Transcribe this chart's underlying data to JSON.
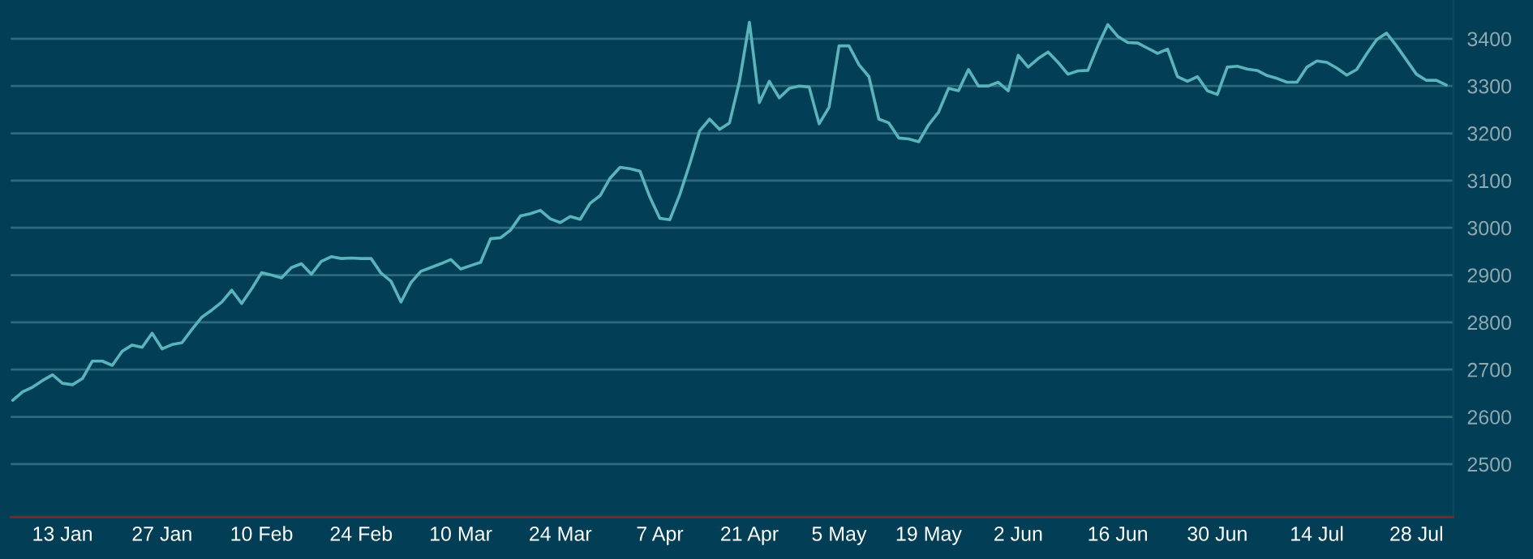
{
  "chart_data": {
    "type": "line",
    "categories": [
      null,
      null,
      null,
      null,
      null,
      "13 Jan",
      null,
      null,
      null,
      null,
      null,
      null,
      null,
      null,
      null,
      "27 Jan",
      null,
      null,
      null,
      null,
      null,
      null,
      null,
      null,
      null,
      "10 Feb",
      null,
      null,
      null,
      null,
      null,
      null,
      null,
      null,
      null,
      "24 Feb",
      null,
      null,
      null,
      null,
      null,
      null,
      null,
      null,
      null,
      "10 Mar",
      null,
      null,
      null,
      null,
      null,
      null,
      null,
      null,
      null,
      "24 Mar",
      null,
      null,
      null,
      null,
      null,
      null,
      null,
      null,
      null,
      "7 Apr",
      null,
      null,
      null,
      null,
      null,
      null,
      null,
      null,
      "21 Apr",
      null,
      null,
      null,
      null,
      null,
      null,
      null,
      null,
      "5 May",
      null,
      null,
      null,
      null,
      null,
      null,
      null,
      null,
      "19 May",
      null,
      null,
      null,
      null,
      null,
      null,
      null,
      null,
      "2 Jun",
      null,
      null,
      null,
      null,
      null,
      null,
      null,
      null,
      null,
      "16 Jun",
      null,
      null,
      null,
      null,
      null,
      null,
      null,
      null,
      null,
      "30 Jun",
      null,
      null,
      null,
      null,
      null,
      null,
      null,
      null,
      null,
      "14 Jul",
      null,
      null,
      null,
      null,
      null,
      null,
      null,
      null,
      null,
      "28 Jul",
      null,
      null,
      null
    ],
    "series": [
      {
        "color": "#5ab4bc",
        "values": [
          2635,
          2653,
          2663,
          2677,
          2689,
          2671,
          2668,
          2681,
          2718,
          2718,
          2709,
          2739,
          2752,
          2747,
          2777,
          2744,
          2753,
          2757,
          2785,
          2811,
          2826,
          2843,
          2868,
          2840,
          2871,
          2905,
          2900,
          2894,
          2916,
          2924,
          2902,
          2929,
          2939,
          2935,
          2936,
          2935,
          2935,
          2904,
          2887,
          2843,
          2884,
          2908,
          2916,
          2924,
          2933,
          2913,
          2920,
          2927,
          2977,
          2979,
          2995,
          3025,
          3030,
          3037,
          3019,
          3011,
          3024,
          3018,
          3052,
          3068,
          3105,
          3128,
          3125,
          3120,
          3065,
          3020,
          3017,
          3070,
          3135,
          3205,
          3230,
          3208,
          3222,
          3310,
          3435,
          3265,
          3310,
          3275,
          3295,
          3300,
          3298,
          3220,
          3255,
          3385,
          3385,
          3345,
          3320,
          3230,
          3222,
          3190,
          3188,
          3182,
          3218,
          3245,
          3295,
          3290,
          3335,
          3300,
          3300,
          3308,
          3290,
          3365,
          3340,
          3358,
          3372,
          3350,
          3325,
          3332,
          3333,
          3385,
          3430,
          3405,
          3392,
          3391,
          3380,
          3369,
          3378,
          3320,
          3310,
          3320,
          3290,
          3282,
          3340,
          3342,
          3336,
          3333,
          3322,
          3316,
          3308,
          3308,
          3340,
          3353,
          3350,
          3338,
          3323,
          3335,
          3368,
          3398,
          3412,
          3385,
          3355,
          3325,
          3312,
          3312,
          3302
        ]
      }
    ],
    "ylim": [
      2388,
      3482
    ],
    "yticks": [
      2500,
      2600,
      2700,
      2800,
      2900,
      3000,
      3100,
      3200,
      3300,
      3400
    ],
    "grid": "y",
    "marker": "none",
    "line_style": "solid"
  }
}
